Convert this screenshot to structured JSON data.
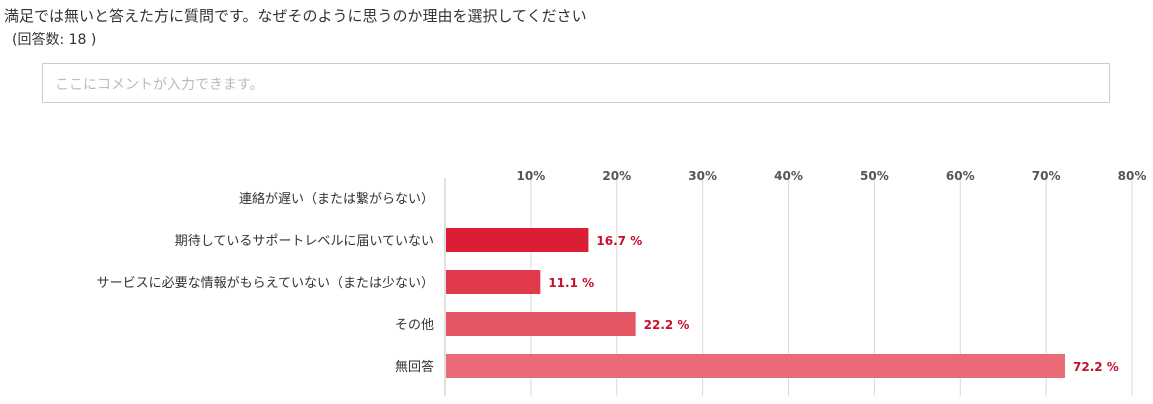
{
  "question": {
    "text": "満足では無いと答えた方に質問です。なぜそのように思うのか理由を選択してください",
    "count_label": "(回答数: 18 )"
  },
  "comment": {
    "placeholder": "ここにコメントが入力できます。"
  },
  "chart_data": {
    "type": "bar",
    "orientation": "horizontal",
    "categories": [
      "連絡が遅い（または繋がらない）",
      "期待しているサポートレベルに届いていない",
      "サービスに必要な情報がもらえていない（または少ない）",
      "その他",
      "無回答"
    ],
    "values": [
      0,
      16.7,
      11.1,
      22.2,
      72.2
    ],
    "value_labels": [
      "",
      "16.7 %",
      "11.1 %",
      "22.2 %",
      "72.2 %"
    ],
    "bar_colors": [
      "#dc1e35",
      "#dc1e35",
      "#e03a4c",
      "#e45563",
      "#e86b77"
    ],
    "label_color": "#c8102e",
    "xlim": [
      0,
      80
    ],
    "ticks": [
      10,
      20,
      30,
      40,
      50,
      60,
      70,
      80
    ],
    "tick_labels": [
      "10%",
      "20%",
      "30%",
      "40%",
      "50%",
      "60%",
      "70%",
      "80%"
    ],
    "xaxis_position": "top",
    "grid": true
  }
}
